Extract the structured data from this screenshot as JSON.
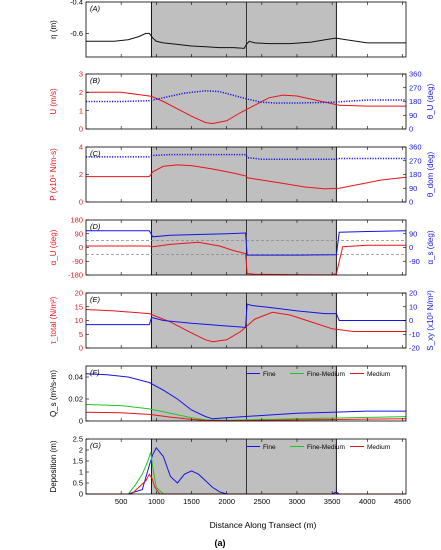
{
  "figure_label": "(a)",
  "x_axis": {
    "label": "Distance Along Transect (m)",
    "ticks": [
      500,
      1000,
      1500,
      2000,
      2500,
      3000,
      3500,
      4000,
      4500
    ],
    "range": [
      0,
      4550
    ]
  },
  "shaded_regions": [
    [
      930,
      2270
    ],
    [
      2290,
      3560
    ]
  ],
  "vlines": [
    930,
    2280,
    3560
  ],
  "colors": {
    "red": "#e8141a",
    "blue": "#1414e6",
    "green": "#22c422",
    "black": "#111111",
    "shade": "#bfbfbf",
    "dash": "#888888"
  },
  "chart_data": [
    {
      "type": "line",
      "panel_label": "(A)",
      "ylabel_left": "η (m)",
      "ylim_left": [
        -0.75,
        -0.4
      ],
      "yticks_left": [
        -0.6,
        -0.4
      ],
      "series": [
        {
          "axis": "left",
          "color": "black",
          "style": "solid",
          "x": [
            0,
            200,
            400,
            600,
            750,
            850,
            900,
            950,
            1000,
            1100,
            1300,
            1500,
            1700,
            1900,
            2100,
            2250,
            2280,
            2320,
            2400,
            2600,
            2900,
            3200,
            3400,
            3550,
            3700,
            4000,
            4300,
            4550
          ],
          "y": [
            -0.65,
            -0.65,
            -0.65,
            -0.64,
            -0.62,
            -0.6,
            -0.6,
            -0.63,
            -0.65,
            -0.66,
            -0.67,
            -0.68,
            -0.685,
            -0.69,
            -0.69,
            -0.695,
            -0.67,
            -0.65,
            -0.66,
            -0.665,
            -0.665,
            -0.655,
            -0.64,
            -0.63,
            -0.64,
            -0.66,
            -0.66,
            -0.66
          ]
        }
      ]
    },
    {
      "type": "line",
      "panel_label": "(B)",
      "ylabel_left": "U (m/s)",
      "ylim_left": [
        0,
        3
      ],
      "yticks_left": [
        0,
        1,
        2,
        3
      ],
      "ylabel_right": "θ_U (deg)",
      "ylim_right": [
        0,
        360
      ],
      "yticks_right": [
        0,
        90,
        180,
        270,
        360
      ],
      "series": [
        {
          "axis": "left",
          "color": "red",
          "style": "solid",
          "x": [
            0,
            500,
            900,
            950,
            1100,
            1300,
            1500,
            1700,
            1800,
            2000,
            2200,
            2400,
            2600,
            2800,
            3000,
            3300,
            3600,
            4000,
            4550
          ],
          "y": [
            2.0,
            2.0,
            1.8,
            1.75,
            1.5,
            1.1,
            0.7,
            0.35,
            0.3,
            0.45,
            0.9,
            1.3,
            1.7,
            1.85,
            1.8,
            1.55,
            1.3,
            1.25,
            1.25
          ]
        },
        {
          "axis": "right",
          "color": "blue",
          "style": "dotted",
          "x": [
            0,
            500,
            900,
            1100,
            1400,
            1700,
            1900,
            2100,
            2300,
            2500,
            2700,
            3000,
            3500,
            4000,
            4550
          ],
          "y": [
            180,
            180,
            185,
            205,
            235,
            250,
            245,
            220,
            195,
            175,
            170,
            170,
            175,
            190,
            190
          ]
        }
      ]
    },
    {
      "type": "line",
      "panel_label": "(C)",
      "ylabel_left": "P (x10⁵ N/m-s)",
      "ylim_left": [
        0,
        4
      ],
      "yticks_left": [
        0,
        2,
        4
      ],
      "ylabel_right": "θ_dom (deg)",
      "ylim_right": [
        0,
        360
      ],
      "yticks_right": [
        0,
        90,
        180,
        270,
        360
      ],
      "series": [
        {
          "axis": "left",
          "color": "red",
          "style": "solid",
          "x": [
            0,
            900,
            950,
            1100,
            1300,
            1500,
            1800,
            2100,
            2270,
            2300,
            2500,
            2800,
            3100,
            3400,
            3600,
            3900,
            4200,
            4550
          ],
          "y": [
            1.85,
            1.85,
            2.2,
            2.6,
            2.7,
            2.65,
            2.4,
            2.1,
            1.9,
            1.75,
            1.6,
            1.35,
            1.1,
            0.95,
            1.0,
            1.3,
            1.6,
            1.8
          ]
        },
        {
          "axis": "right",
          "color": "blue",
          "style": "dotted",
          "x": [
            0,
            900,
            950,
            1200,
            2270,
            2300,
            2500,
            3000,
            3560,
            3600,
            4550
          ],
          "y": [
            295,
            295,
            305,
            310,
            310,
            290,
            280,
            280,
            280,
            285,
            285
          ]
        }
      ]
    },
    {
      "type": "line",
      "panel_label": "(D)",
      "ylabel_left": "α_U (deg)",
      "ylim_left": [
        -180,
        180
      ],
      "yticks_left": [
        -180,
        -90,
        0,
        90,
        180
      ],
      "ylabel_right": "α_s (deg)",
      "ylim_right": [
        -180,
        180
      ],
      "yticks_right": [
        -90,
        0,
        90
      ],
      "hlines_dashed": [
        45,
        -45
      ],
      "series": [
        {
          "axis": "left",
          "color": "red",
          "style": "solid",
          "x": [
            0,
            900,
            950,
            1200,
            1600,
            1900,
            2100,
            2270,
            2290,
            2400,
            3000,
            3500,
            3560,
            3650,
            4000,
            4550
          ],
          "y": [
            10,
            10,
            5,
            20,
            35,
            10,
            -20,
            -40,
            -170,
            -175,
            -178,
            -180,
            -170,
            5,
            15,
            15
          ]
        },
        {
          "axis": "right",
          "color": "blue",
          "style": "solid",
          "x": [
            0,
            900,
            930,
            950,
            1200,
            2000,
            2270,
            2290,
            2500,
            3000,
            3560,
            3600,
            4000,
            4550
          ],
          "y": [
            110,
            110,
            85,
            70,
            80,
            90,
            95,
            -50,
            -50,
            -50,
            -48,
            100,
            105,
            110
          ]
        }
      ]
    },
    {
      "type": "line",
      "panel_label": "(E)",
      "ylabel_left": "τ_total (N/m²)",
      "ylim_left": [
        0,
        20
      ],
      "yticks_left": [
        0,
        5,
        10,
        15,
        20
      ],
      "ylabel_right": "S_xy (x10³ N/m²)",
      "ylim_right": [
        -20,
        20
      ],
      "yticks_right": [
        -20,
        -10,
        0,
        10,
        20
      ],
      "series": [
        {
          "axis": "left",
          "color": "red",
          "style": "solid",
          "x": [
            0,
            400,
            900,
            1200,
            1500,
            1700,
            1800,
            2000,
            2200,
            2400,
            2650,
            2900,
            3200,
            3500,
            3800,
            4200,
            4550
          ],
          "y": [
            14,
            13.5,
            12.5,
            9.5,
            5.5,
            3.0,
            2.3,
            3.0,
            6.0,
            10.5,
            13,
            12,
            9.5,
            7.0,
            6.0,
            6.0,
            6.0
          ]
        },
        {
          "axis": "right",
          "color": "blue",
          "style": "solid",
          "x": [
            0,
            900,
            930,
            950,
            1100,
            1500,
            2000,
            2270,
            2290,
            2350,
            2600,
            3000,
            3400,
            3560,
            3600,
            4000,
            4550
          ],
          "y": [
            -3,
            -3,
            2,
            2,
            0,
            -2,
            -4,
            -5,
            12,
            11,
            9.5,
            7,
            5,
            5,
            0,
            0,
            0
          ]
        }
      ]
    },
    {
      "type": "line",
      "panel_label": "(F)",
      "ylabel_left": "Q_s (m³/s-m)",
      "ylim_left": [
        0,
        0.05
      ],
      "yticks_left": [
        0,
        0.02,
        0.04
      ],
      "legend": [
        "Fine",
        "Fine-Medium",
        "Medium"
      ],
      "legend_position": "top-right",
      "series": [
        {
          "name": "Fine",
          "axis": "left",
          "color": "blue",
          "style": "solid",
          "x": [
            0,
            300,
            600,
            900,
            1100,
            1300,
            1500,
            1700,
            1800,
            2000,
            2500,
            3000,
            3500,
            4000,
            4550
          ],
          "y": [
            0.043,
            0.042,
            0.04,
            0.035,
            0.028,
            0.02,
            0.01,
            0.004,
            0.002,
            0.003,
            0.005,
            0.007,
            0.008,
            0.009,
            0.009
          ]
        },
        {
          "name": "Fine-Medium",
          "axis": "left",
          "color": "green",
          "style": "solid",
          "x": [
            0,
            500,
            900,
            1200,
            1500,
            1700,
            2000,
            3000,
            4550
          ],
          "y": [
            0.015,
            0.014,
            0.011,
            0.007,
            0.003,
            0.001,
            0.0005,
            0.002,
            0.004
          ]
        },
        {
          "name": "Medium",
          "axis": "left",
          "color": "red",
          "style": "solid",
          "x": [
            0,
            500,
            900,
            1200,
            1500,
            1700,
            2000,
            3000,
            4550
          ],
          "y": [
            0.008,
            0.0075,
            0.006,
            0.0035,
            0.0015,
            0.0005,
            0.0002,
            0.001,
            0.002
          ]
        }
      ]
    },
    {
      "type": "line",
      "panel_label": "(G)",
      "ylabel_left": "Deposition (m)",
      "ylim_left": [
        0,
        2.5
      ],
      "yticks_left": [
        0,
        0.5,
        1,
        1.5,
        2,
        2.5
      ],
      "legend": [
        "Fine",
        "Fine-Medium",
        "Medium"
      ],
      "legend_position": "top-right",
      "series": [
        {
          "name": "Fine",
          "axis": "left",
          "color": "blue",
          "style": "solid",
          "x": [
            0,
            600,
            800,
            900,
            950,
            1000,
            1100,
            1200,
            1300,
            1400,
            1500,
            1600,
            1700,
            1800,
            1900,
            2000,
            2100,
            3500,
            3560,
            3600,
            4550
          ],
          "y": [
            0,
            0,
            0.2,
            1.3,
            1.8,
            2.1,
            1.7,
            0.8,
            0.5,
            0.9,
            1.05,
            0.9,
            0.6,
            0.3,
            0.1,
            0,
            0,
            0,
            0.1,
            0,
            0
          ]
        },
        {
          "name": "Fine-Medium",
          "axis": "left",
          "color": "green",
          "style": "solid",
          "x": [
            0,
            600,
            700,
            800,
            880,
            920,
            950,
            1000,
            1100,
            4550
          ],
          "y": [
            0,
            0,
            0.4,
            0.9,
            1.5,
            1.9,
            1.2,
            0.3,
            0,
            0
          ]
        },
        {
          "name": "Medium",
          "axis": "left",
          "color": "red",
          "style": "solid",
          "x": [
            0,
            650,
            750,
            850,
            900,
            940,
            980,
            1050,
            4550
          ],
          "y": [
            0,
            0,
            0.3,
            0.6,
            0.9,
            0.7,
            0.3,
            0,
            0
          ]
        }
      ]
    }
  ]
}
